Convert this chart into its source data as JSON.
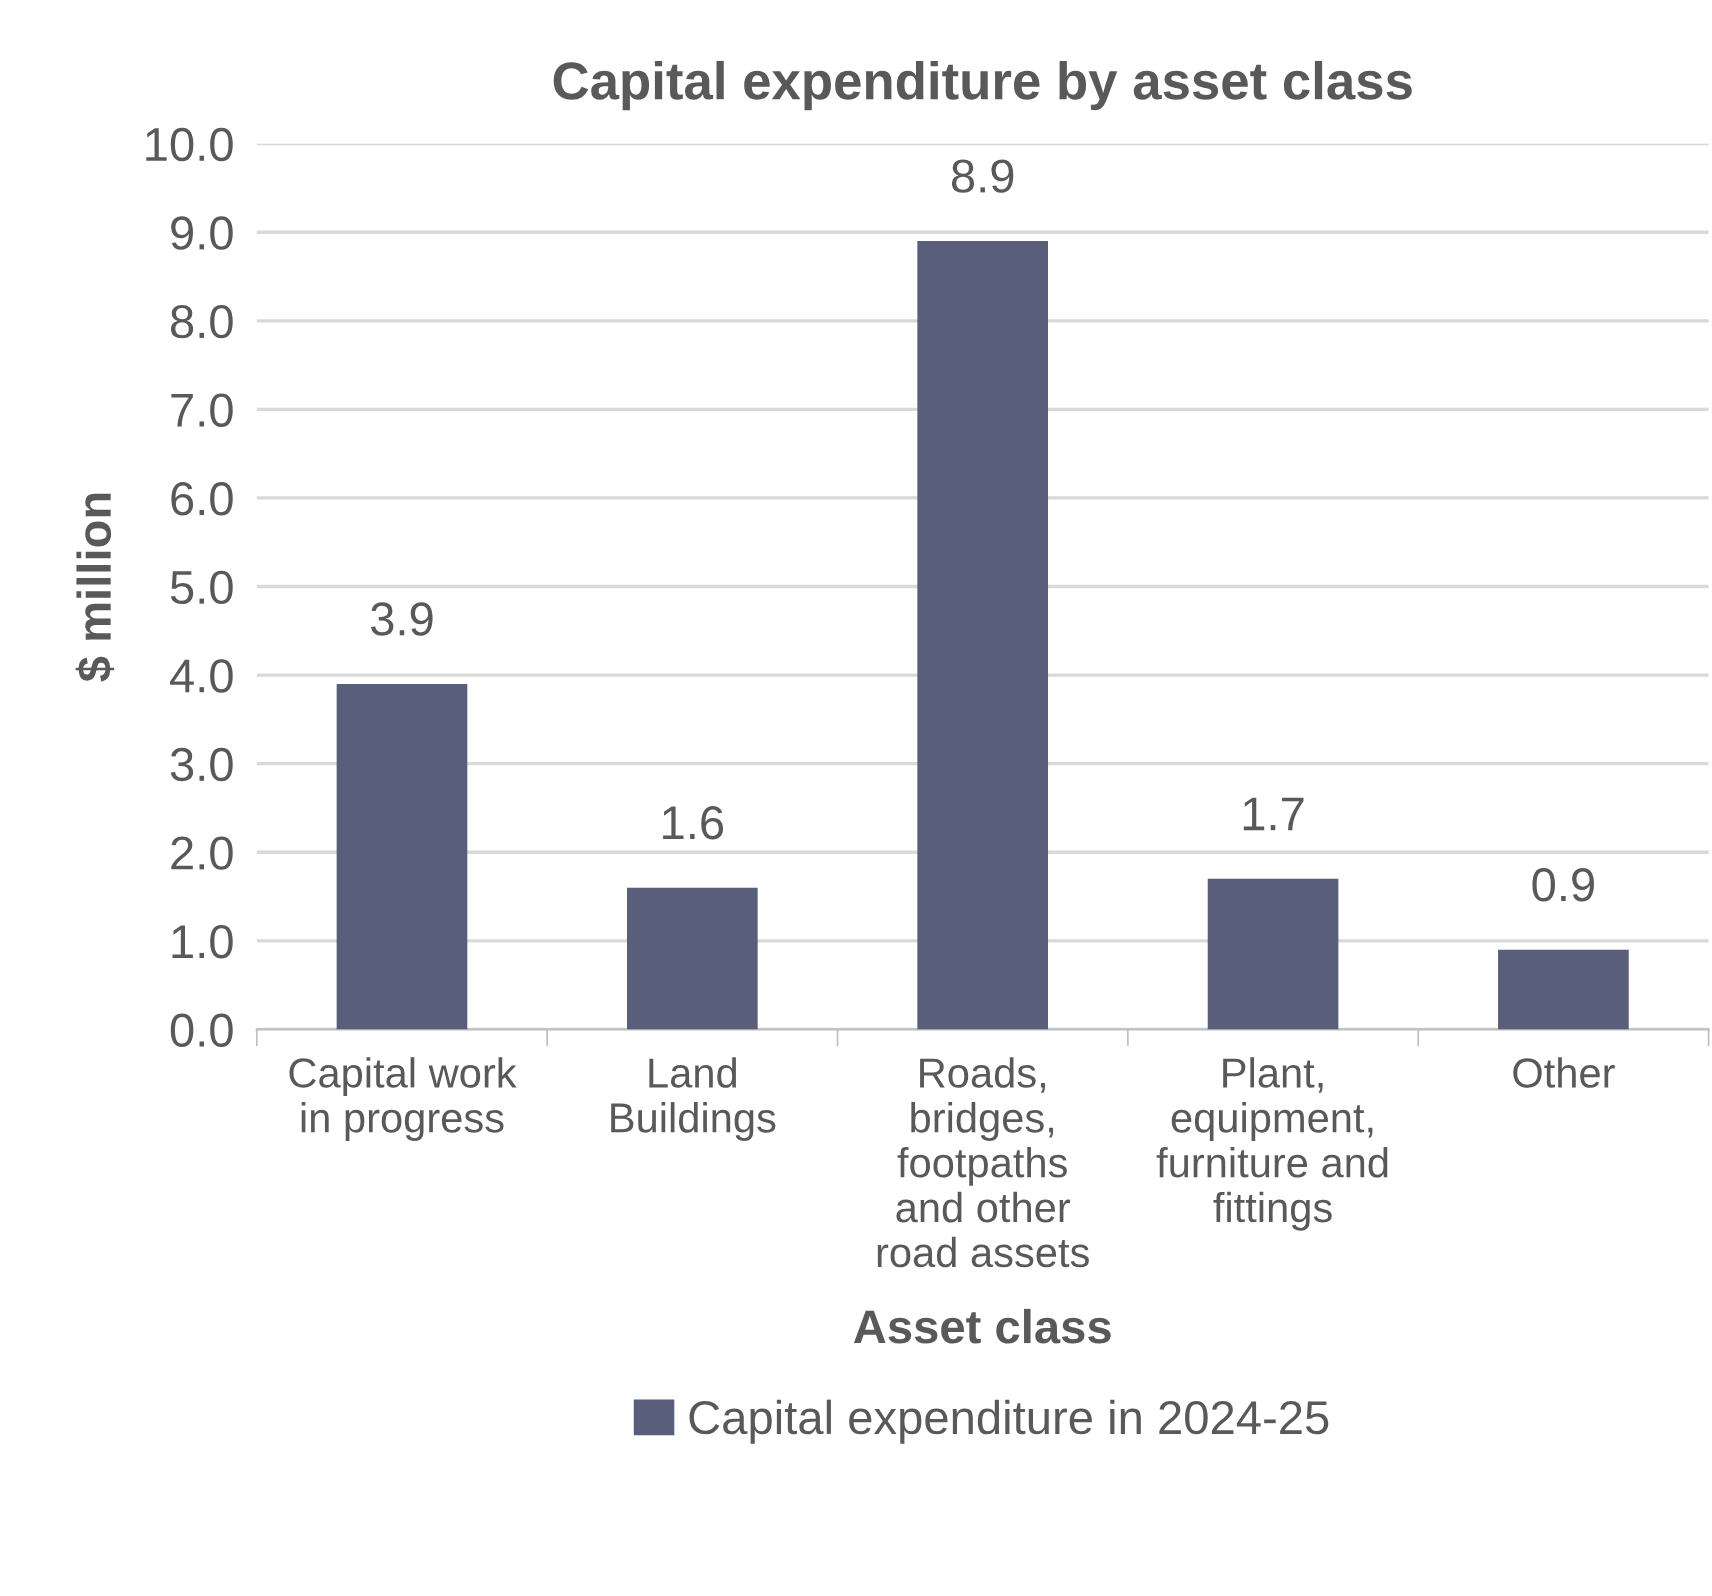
{
  "chart_data": {
    "type": "bar",
    "title": "Capital expenditure by asset class",
    "xlabel": "Asset class",
    "ylabel": "$ million",
    "categories": [
      "Capital work\nin progress",
      "Land\nBuildings",
      "Roads,\nbridges,\nfootpaths\nand other\nroad assets",
      "Plant,\nequipment,\nfurniture and\nfittings",
      "Other"
    ],
    "series": [
      {
        "name": "Capital expenditure in 2024-25",
        "color": "#595e7a",
        "values": [
          3.9,
          1.6,
          8.9,
          1.7,
          0.9
        ]
      }
    ],
    "ylim": [
      0,
      10
    ],
    "yticks": [
      {
        "value": 0,
        "label": "0.0"
      },
      {
        "value": 1,
        "label": "1.0"
      },
      {
        "value": 2,
        "label": "2.0"
      },
      {
        "value": 3,
        "label": "3.0"
      },
      {
        "value": 4,
        "label": "4.0"
      },
      {
        "value": 5,
        "label": "5.0"
      },
      {
        "value": 6,
        "label": "6.0"
      },
      {
        "value": 7,
        "label": "7.0"
      },
      {
        "value": 8,
        "label": "8.0"
      },
      {
        "value": 9,
        "label": "9.0"
      },
      {
        "value": 10,
        "label": "10.0"
      }
    ],
    "grid": "y",
    "legend": "bottom",
    "data_labels": true
  }
}
